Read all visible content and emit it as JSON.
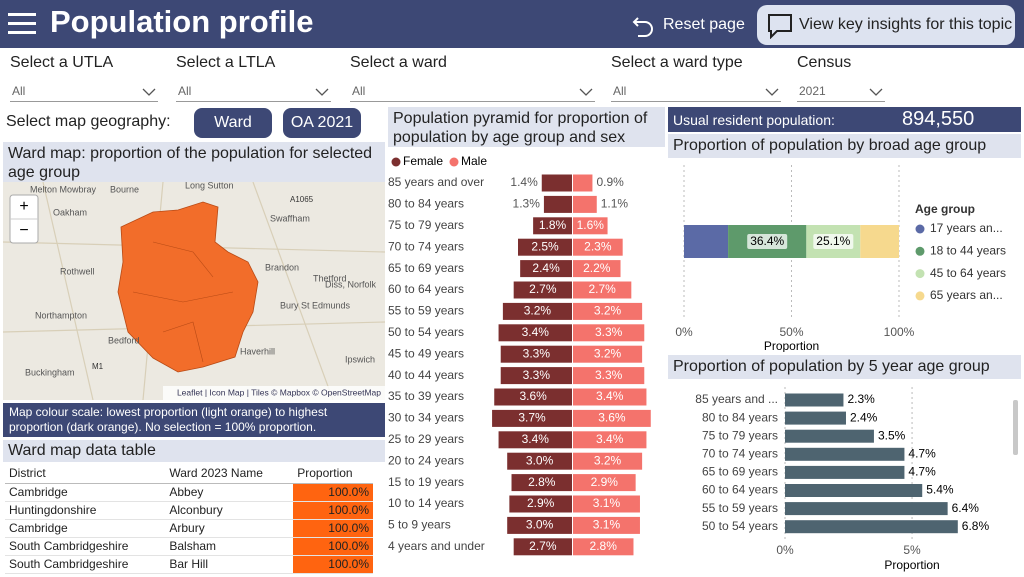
{
  "header": {
    "title": "Population profile",
    "reset": "Reset page",
    "insights": "View key insights for this topic"
  },
  "filters": [
    {
      "label": "Select a UTLA",
      "value": "All"
    },
    {
      "label": "Select a LTLA",
      "value": "All"
    },
    {
      "label": "Select a ward",
      "value": "All"
    },
    {
      "label": "Select a ward type",
      "value": "All"
    },
    {
      "label": "Census",
      "value": "2021"
    }
  ],
  "map_geography": {
    "label": "Select map geography:",
    "options": [
      "Ward",
      "OA 2021"
    ]
  },
  "map": {
    "title": "Ward map: proportion of the population for selected age group",
    "places": [
      "Melton Mowbray",
      "Bourne",
      "Long Sutton",
      "Oakham",
      "Swaffham",
      "Rothwell",
      "Brandon",
      "Thetford",
      "Diss, Norfolk",
      "Bury St Edmunds",
      "Northampton",
      "Bedford",
      "Haverhill",
      "Ipswich",
      "Buckingham"
    ],
    "roads": [
      "A1065",
      "M1"
    ],
    "zoom_in": "+",
    "zoom_out": "−",
    "attribution": "Leaflet | Icon Map | Tiles © Mapbox © OpenStreetMap",
    "scale_note": "Map colour scale: lowest proportion (light orange) to highest proportion (dark orange). No selection = 100% proportion."
  },
  "table": {
    "title": "Ward map data table",
    "columns": [
      "District",
      "Ward 2023 Name",
      "Proportion"
    ],
    "rows": [
      [
        "Cambridge",
        "Abbey",
        "100.0%"
      ],
      [
        "Huntingdonshire",
        "Alconbury",
        "100.0%"
      ],
      [
        "Cambridge",
        "Arbury",
        "100.0%"
      ],
      [
        "South Cambridgeshire",
        "Balsham",
        "100.0%"
      ],
      [
        "South Cambridgeshire",
        "Bar Hill",
        "100.0%"
      ]
    ]
  },
  "kpi": {
    "label": "Usual resident population:",
    "value": "894,550"
  },
  "chart_data": [
    {
      "type": "pyramid",
      "title": "Population pyramid for proportion of population by age group and sex",
      "categories": [
        "85 years and over",
        "80 to 84 years",
        "75 to 79 years",
        "70 to 74 years",
        "65 to 69 years",
        "60 to 64 years",
        "55 to 59 years",
        "50 to 54 years",
        "45 to 49 years",
        "40 to 44 years",
        "35 to 39 years",
        "30 to 34 years",
        "25 to 29 years",
        "20 to 24 years",
        "15 to 19 years",
        "10 to 14 years",
        "5 to 9 years",
        "4 years and under"
      ],
      "series": [
        {
          "name": "Female",
          "color": "#7b2f2f",
          "values": [
            1.4,
            1.3,
            1.8,
            2.5,
            2.4,
            2.7,
            3.2,
            3.4,
            3.3,
            3.3,
            3.6,
            3.7,
            3.4,
            3.0,
            2.8,
            2.9,
            3.0,
            2.7
          ],
          "value_labels": [
            "1.4%",
            "1.3%",
            "1.8%",
            "2.5%",
            "2.4%",
            "2.7%",
            "3.2%",
            "3.4%",
            "3.3%",
            "3.3%",
            "3.6%",
            "3.7%",
            "3.4%",
            "3.0%",
            "2.8%",
            "2.9%",
            "3.0%",
            "2.7%"
          ]
        },
        {
          "name": "Male",
          "color": "#f4736c",
          "values": [
            0.9,
            1.1,
            1.6,
            2.3,
            2.2,
            2.7,
            3.2,
            3.3,
            3.2,
            3.3,
            3.4,
            3.6,
            3.4,
            3.2,
            2.9,
            3.1,
            3.1,
            2.8
          ],
          "value_labels": [
            "0.9%",
            "1.1%",
            "1.6%",
            "2.3%",
            "2.2%",
            "2.7%",
            "3.2%",
            "3.3%",
            "3.2%",
            "3.3%",
            "3.4%",
            "3.6%",
            "3.4%",
            "3.2%",
            "2.9%",
            "3.1%",
            "3.1%",
            "2.8%"
          ]
        }
      ]
    },
    {
      "type": "stacked",
      "title": "Proportion of population by broad age group",
      "legend_title": "Age group",
      "series": [
        {
          "name": "17 years an...",
          "color": "#5b6aa6",
          "values": [
            20.5
          ],
          "value_labels": [
            null
          ]
        },
        {
          "name": "18 to 44 years",
          "color": "#5e9a6b",
          "values": [
            36.4
          ],
          "value_labels": [
            "36.4%"
          ]
        },
        {
          "name": "45 to 64 years",
          "color": "#c3e2b2",
          "values": [
            25.1
          ],
          "value_labels": [
            "25.1%"
          ]
        },
        {
          "name": "65 years an...",
          "color": "#f6d98e",
          "values": [
            18.0
          ],
          "value_labels": [
            null
          ]
        }
      ],
      "xlim": [
        0,
        100
      ],
      "xticks": [
        {
          "value": 0,
          "label": "0%"
        },
        {
          "value": 50,
          "label": "50%"
        },
        {
          "value": 100,
          "label": "100%"
        }
      ],
      "xlabel": "Proportion",
      "grid": true
    },
    {
      "type": "hbar",
      "title": "Proportion of population by 5 year age group",
      "categories": [
        "85 years and ...",
        "80 to 84 years",
        "75 to 79 years",
        "70 to 74 years",
        "65 to 69 years",
        "60 to 64 years",
        "55 to 59 years",
        "50 to 54 years"
      ],
      "values": [
        2.3,
        2.4,
        3.5,
        4.7,
        4.7,
        5.4,
        6.4,
        6.8
      ],
      "value_labels": [
        "2.3%",
        "2.4%",
        "3.5%",
        "4.7%",
        "4.7%",
        "5.4%",
        "6.4%",
        "6.8%"
      ],
      "color": "#4e6470",
      "xlim": [
        0,
        8.5
      ],
      "xticks": [
        {
          "value": 0,
          "label": "0%"
        },
        {
          "value": 5,
          "label": "5%"
        }
      ],
      "xlabel": "Proportion",
      "grid": true
    }
  ]
}
